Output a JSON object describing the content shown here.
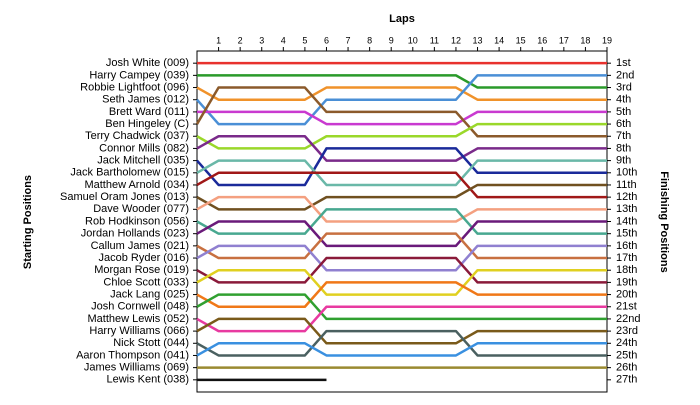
{
  "chart_data": {
    "type": "line",
    "x_label": "Laps",
    "y_label": "Starting Positions",
    "y2_label": "Finishing Positions",
    "x": [
      0,
      1,
      2,
      3,
      4,
      5,
      6,
      7,
      8,
      9,
      10,
      11,
      12,
      13,
      14,
      15,
      16,
      17,
      18,
      19
    ],
    "xlim": [
      0,
      19
    ],
    "xticks": [
      1,
      2,
      3,
      4,
      5,
      6,
      7,
      8,
      9,
      10,
      11,
      12,
      13,
      14,
      15,
      16,
      17,
      18,
      19
    ],
    "ylim": [
      28,
      0
    ],
    "yticks": [
      {
        "value": 1,
        "label": "1st"
      },
      {
        "value": 2,
        "label": "2nd"
      },
      {
        "value": 3,
        "label": "3rd"
      },
      {
        "value": 4,
        "label": "4th"
      },
      {
        "value": 5,
        "label": "5th"
      },
      {
        "value": 6,
        "label": "6th"
      },
      {
        "value": 7,
        "label": "7th"
      },
      {
        "value": 8,
        "label": "8th"
      },
      {
        "value": 9,
        "label": "9th"
      },
      {
        "value": 10,
        "label": "10th"
      },
      {
        "value": 11,
        "label": "11th"
      },
      {
        "value": 12,
        "label": "12th"
      },
      {
        "value": 13,
        "label": "13th"
      },
      {
        "value": 14,
        "label": "14th"
      },
      {
        "value": 15,
        "label": "15th"
      },
      {
        "value": 16,
        "label": "16th"
      },
      {
        "value": 17,
        "label": "17th"
      },
      {
        "value": 18,
        "label": "18th"
      },
      {
        "value": 19,
        "label": "19th"
      },
      {
        "value": 20,
        "label": "20th"
      },
      {
        "value": 21,
        "label": "21st"
      },
      {
        "value": 22,
        "label": "22nd"
      },
      {
        "value": 23,
        "label": "23rd"
      },
      {
        "value": 24,
        "label": "24th"
      },
      {
        "value": 25,
        "label": "25th"
      },
      {
        "value": 26,
        "label": "26th"
      },
      {
        "value": 27,
        "label": "27th"
      }
    ],
    "series": [
      {
        "name": "Josh White (009)",
        "color": "#e8322e",
        "values": [
          1,
          1,
          1,
          1,
          1,
          1,
          1,
          1,
          1,
          1,
          1,
          1,
          1,
          1,
          1,
          1,
          1,
          1,
          1,
          1
        ]
      },
      {
        "name": "Harry Campey (039)",
        "color": "#2a9a2a",
        "values": [
          2,
          2,
          2,
          2,
          2,
          2,
          2,
          2,
          2,
          2,
          2,
          2,
          2,
          3,
          3,
          3,
          3,
          3,
          3,
          3
        ]
      },
      {
        "name": "Robbie Lightfoot (096)",
        "color": "#f0922a",
        "values": [
          3,
          4,
          4,
          4,
          4,
          4,
          3,
          3,
          3,
          3,
          3,
          3,
          3,
          4,
          4,
          4,
          4,
          4,
          4,
          4
        ]
      },
      {
        "name": "Seth James (012)",
        "color": "#4a8fd6",
        "values": [
          4,
          6,
          6,
          6,
          6,
          6,
          4,
          4,
          4,
          4,
          4,
          4,
          4,
          2,
          2,
          2,
          2,
          2,
          2,
          2
        ]
      },
      {
        "name": "Brett Ward (011)",
        "color": "#c93ad0",
        "values": [
          5,
          5,
          5,
          5,
          5,
          5,
          6,
          6,
          6,
          6,
          6,
          6,
          6,
          5,
          5,
          5,
          5,
          5,
          5,
          5
        ]
      },
      {
        "name": "Ben Hingeley (C)",
        "color": "#8b5a2b",
        "values": [
          6,
          3,
          3,
          3,
          3,
          3,
          5,
          5,
          5,
          5,
          5,
          5,
          5,
          7,
          7,
          7,
          7,
          7,
          7,
          7
        ]
      },
      {
        "name": "Terry Chadwick (037)",
        "color": "#9ad82a",
        "values": [
          7,
          8,
          8,
          8,
          8,
          8,
          7,
          7,
          7,
          7,
          7,
          7,
          7,
          6,
          6,
          6,
          6,
          6,
          6,
          6
        ]
      },
      {
        "name": "Connor Mills (082)",
        "color": "#7a2a8a",
        "values": [
          8,
          7,
          7,
          7,
          7,
          7,
          9,
          9,
          9,
          9,
          9,
          9,
          9,
          8,
          8,
          8,
          8,
          8,
          8,
          8
        ]
      },
      {
        "name": "Jack Mitchell (035)",
        "color": "#1a2a9a",
        "values": [
          9,
          11,
          11,
          11,
          11,
          11,
          8,
          8,
          8,
          8,
          8,
          8,
          8,
          10,
          10,
          10,
          10,
          10,
          10,
          10
        ]
      },
      {
        "name": "Jack Bartholomew (015)",
        "color": "#6ab8a8",
        "values": [
          10,
          9,
          9,
          9,
          9,
          9,
          11,
          11,
          11,
          11,
          11,
          11,
          11,
          9,
          9,
          9,
          9,
          9,
          9,
          9
        ]
      },
      {
        "name": "Matthew Arnold (034)",
        "color": "#a01818",
        "values": [
          11,
          10,
          10,
          10,
          10,
          10,
          10,
          10,
          10,
          10,
          10,
          10,
          10,
          12,
          12,
          12,
          12,
          12,
          12,
          12
        ]
      },
      {
        "name": "Samuel Oram Jones (013)",
        "color": "#705020",
        "values": [
          12,
          13,
          13,
          13,
          13,
          13,
          12,
          12,
          12,
          12,
          12,
          12,
          12,
          11,
          11,
          11,
          11,
          11,
          11,
          11
        ]
      },
      {
        "name": "Dave Wooder (077)",
        "color": "#f4a080",
        "values": [
          13,
          12,
          12,
          12,
          12,
          12,
          14,
          14,
          14,
          14,
          14,
          14,
          14,
          13,
          13,
          13,
          13,
          13,
          13,
          13
        ]
      },
      {
        "name": "Rob Hodkinson (056)",
        "color": "#48a890",
        "values": [
          14,
          15,
          15,
          15,
          15,
          15,
          13,
          13,
          13,
          13,
          13,
          13,
          13,
          15,
          15,
          15,
          15,
          15,
          15,
          15
        ]
      },
      {
        "name": "Jordan Hollands (023)",
        "color": "#6a1a7a",
        "values": [
          15,
          14,
          14,
          14,
          14,
          14,
          16,
          16,
          16,
          16,
          16,
          16,
          16,
          14,
          14,
          14,
          14,
          14,
          14,
          14
        ]
      },
      {
        "name": "Callum James (021)",
        "color": "#c87040",
        "values": [
          16,
          17,
          17,
          17,
          17,
          17,
          15,
          15,
          15,
          15,
          15,
          15,
          15,
          17,
          17,
          17,
          17,
          17,
          17,
          17
        ]
      },
      {
        "name": "Jacob Ryder (016)",
        "color": "#9080d0",
        "values": [
          17,
          16,
          16,
          16,
          16,
          16,
          18,
          18,
          18,
          18,
          18,
          18,
          18,
          16,
          16,
          16,
          16,
          16,
          16,
          16
        ]
      },
      {
        "name": "Morgan Rose (019)",
        "color": "#8a1a3a",
        "values": [
          18,
          19,
          19,
          19,
          19,
          19,
          17,
          17,
          17,
          17,
          17,
          17,
          17,
          19,
          19,
          19,
          19,
          19,
          19,
          19
        ]
      },
      {
        "name": "Chloe Scott (033)",
        "color": "#e0d020",
        "values": [
          19,
          18,
          18,
          18,
          18,
          18,
          20,
          20,
          20,
          20,
          20,
          20,
          20,
          18,
          18,
          18,
          18,
          18,
          18,
          18
        ]
      },
      {
        "name": "Jack Lang (025)",
        "color": "#f07818",
        "values": [
          20,
          21,
          21,
          21,
          21,
          21,
          19,
          19,
          19,
          19,
          19,
          19,
          19,
          20,
          20,
          20,
          20,
          20,
          20,
          20
        ]
      },
      {
        "name": "Josh Cornwell (048)",
        "color": "#30a030",
        "values": [
          21,
          20,
          20,
          20,
          20,
          20,
          22,
          22,
          22,
          22,
          22,
          22,
          22,
          22,
          22,
          22,
          22,
          22,
          22,
          22
        ]
      },
      {
        "name": "Matthew Lewis (052)",
        "color": "#e83aa0",
        "values": [
          22,
          23,
          23,
          23,
          23,
          23,
          21,
          21,
          21,
          21,
          21,
          21,
          21,
          21,
          21,
          21,
          21,
          21,
          21,
          21
        ]
      },
      {
        "name": "Harry Williams (066)",
        "color": "#7a5a1a",
        "values": [
          23,
          22,
          22,
          22,
          22,
          22,
          24,
          24,
          24,
          24,
          24,
          24,
          24,
          23,
          23,
          23,
          23,
          23,
          23,
          23
        ]
      },
      {
        "name": "Nick Stott (044)",
        "color": "#4a6060",
        "values": [
          24,
          25,
          25,
          25,
          25,
          25,
          23,
          23,
          23,
          23,
          23,
          23,
          23,
          25,
          25,
          25,
          25,
          25,
          25,
          25
        ]
      },
      {
        "name": "Aaron Thompson (041)",
        "color": "#3a90e0",
        "values": [
          25,
          24,
          24,
          24,
          24,
          24,
          25,
          25,
          25,
          25,
          25,
          25,
          25,
          24,
          24,
          24,
          24,
          24,
          24,
          24
        ]
      },
      {
        "name": "James Williams (069)",
        "color": "#9a8a30",
        "values": [
          26,
          26,
          26,
          26,
          26,
          26,
          26,
          26,
          26,
          26,
          26,
          26,
          26,
          26,
          26,
          26,
          26,
          26,
          26,
          26
        ]
      },
      {
        "name": "Lewis Kent (038)",
        "color": "#111111",
        "values": [
          27,
          27,
          27,
          27,
          27,
          27,
          27,
          null,
          null,
          null,
          null,
          null,
          null,
          null,
          null,
          null,
          null,
          null,
          null,
          null
        ]
      }
    ]
  }
}
